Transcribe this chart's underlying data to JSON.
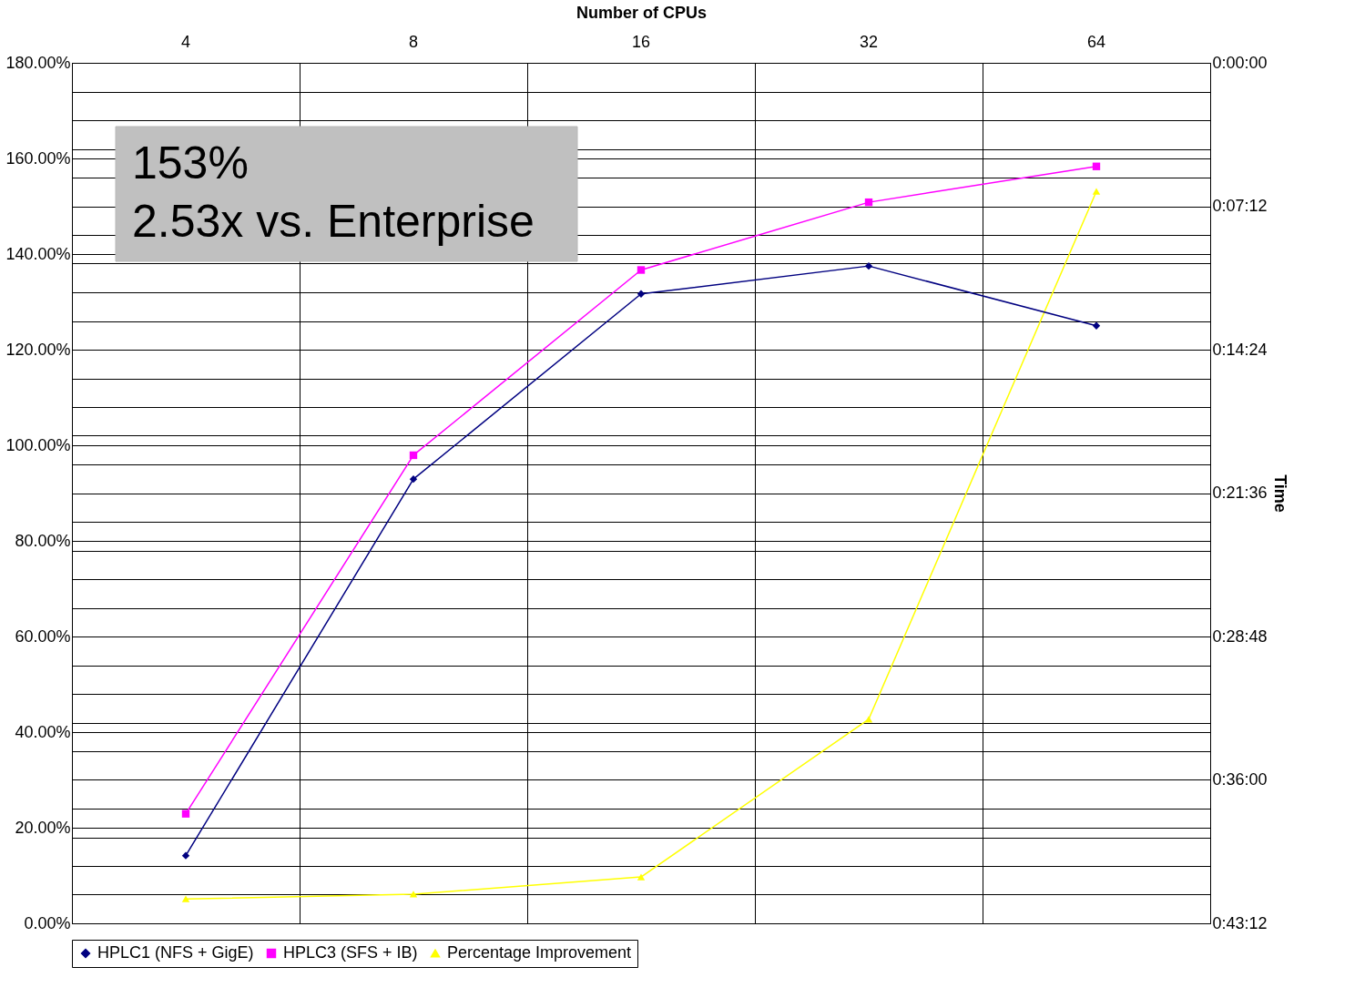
{
  "chart_data": {
    "type": "line",
    "xlabel": "Number of CPUs",
    "y2label": "Time",
    "categories": [
      "4",
      "8",
      "16",
      "32",
      "64"
    ],
    "series": [
      {
        "name": "HPLC1 (NFS + GigE)",
        "color": "#000080",
        "marker": "diamond",
        "axis": "y2",
        "values": [
          39.8,
          20.9,
          11.6,
          10.2,
          13.2
        ]
      },
      {
        "name": "HPLC3 (SFS + IB)",
        "color": "#ff00ff",
        "marker": "square",
        "axis": "y2",
        "values": [
          37.7,
          19.7,
          10.4,
          7.0,
          5.2
        ]
      },
      {
        "name": "Percentage Improvement",
        "color": "#ffff00",
        "marker": "triangle",
        "values": [
          5.1,
          6.1,
          9.7,
          42.7,
          153.1
        ]
      }
    ],
    "ylim": [
      0,
      180
    ],
    "yticks": [
      {
        "value": 0,
        "label": "0.00%"
      },
      {
        "value": 20,
        "label": "20.00%"
      },
      {
        "value": 40,
        "label": "40.00%"
      },
      {
        "value": 60,
        "label": "60.00%"
      },
      {
        "value": 80,
        "label": "80.00%"
      },
      {
        "value": 100,
        "label": "100.00%"
      },
      {
        "value": 120,
        "label": "120.00%"
      },
      {
        "value": 140,
        "label": "140.00%"
      },
      {
        "value": 160,
        "label": "160.00%"
      },
      {
        "value": 180,
        "label": "180.00%"
      }
    ],
    "y2lim": [
      43.2,
      0
    ],
    "y2ticks": [
      {
        "value": 0,
        "label": "0:00:00"
      },
      {
        "value": 1.44,
        "label": null
      },
      {
        "value": 2.88,
        "label": null
      },
      {
        "value": 4.32,
        "label": null
      },
      {
        "value": 5.76,
        "label": null
      },
      {
        "value": 7.2,
        "label": "0:07:12"
      },
      {
        "value": 8.64,
        "label": null
      },
      {
        "value": 10.08,
        "label": null
      },
      {
        "value": 11.52,
        "label": null
      },
      {
        "value": 12.96,
        "label": null
      },
      {
        "value": 14.4,
        "label": "0:14:24"
      },
      {
        "value": 15.84,
        "label": null
      },
      {
        "value": 17.28,
        "label": null
      },
      {
        "value": 18.72,
        "label": null
      },
      {
        "value": 20.16,
        "label": null
      },
      {
        "value": 21.6,
        "label": "0:21:36"
      },
      {
        "value": 23.04,
        "label": null
      },
      {
        "value": 24.48,
        "label": null
      },
      {
        "value": 25.92,
        "label": null
      },
      {
        "value": 27.36,
        "label": null
      },
      {
        "value": 28.8,
        "label": "0:28:48"
      },
      {
        "value": 30.24,
        "label": null
      },
      {
        "value": 31.68,
        "label": null
      },
      {
        "value": 33.12,
        "label": null
      },
      {
        "value": 34.56,
        "label": null
      },
      {
        "value": 36,
        "label": "0:36:00"
      },
      {
        "value": 37.44,
        "label": null
      },
      {
        "value": 38.88,
        "label": null
      },
      {
        "value": 40.32,
        "label": null
      },
      {
        "value": 41.76,
        "label": null
      },
      {
        "value": 43.2,
        "label": "0:43:12"
      }
    ],
    "grid": true,
    "legend": "bottom",
    "line_style": "solid",
    "annotations": [
      "153%",
      "2.53x vs. Enterprise"
    ]
  }
}
